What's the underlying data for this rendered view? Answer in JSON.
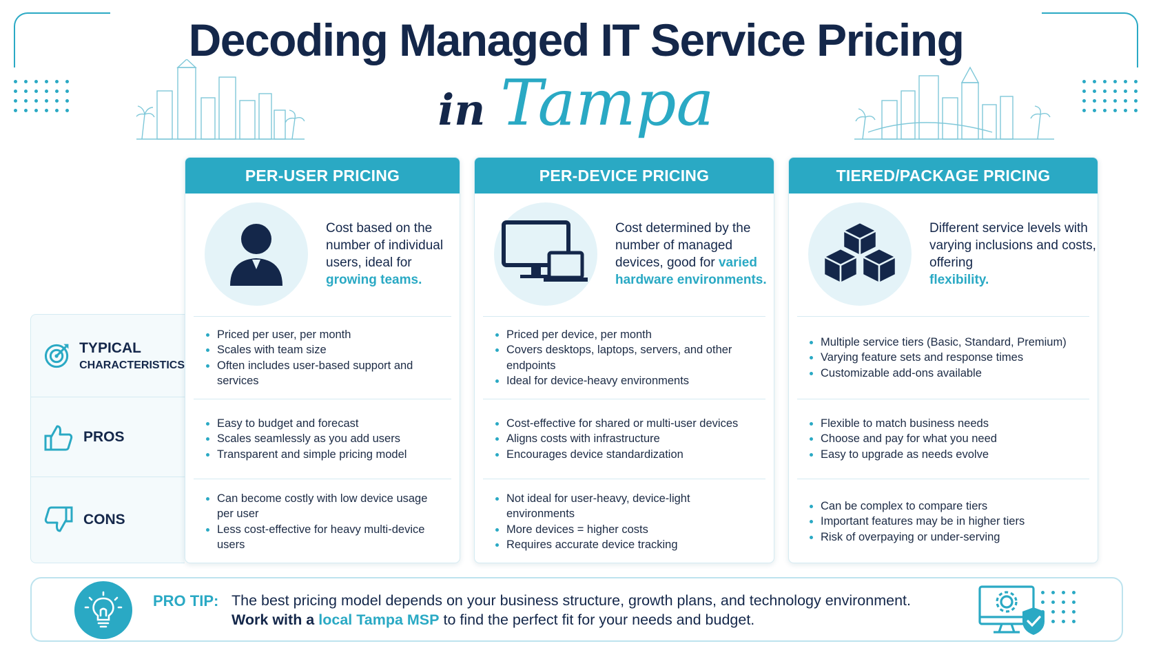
{
  "title": {
    "main": "Decoding Managed IT Service Pricing",
    "in": "in",
    "city": "Tampa"
  },
  "colors": {
    "accent": "#2aa9c4",
    "navy": "#14274a",
    "light": "#e4f3f8"
  },
  "row_labels": {
    "characteristics_1": "TYPICAL",
    "characteristics_2": "CHARACTERISTICS",
    "pros": "PROS",
    "cons": "CONS"
  },
  "columns": [
    {
      "header": "PER-USER PRICING",
      "icon": "user-icon",
      "desc_plain": "Cost based on the number of individual users, ideal for",
      "desc_hl": "growing teams.",
      "characteristics": [
        "Priced per user, per month",
        "Scales with team size",
        "Often includes user-based support and services"
      ],
      "pros": [
        "Easy to budget and forecast",
        "Scales seamlessly as you add users",
        "Transparent and simple pricing model"
      ],
      "cons": [
        "Can become costly with low device usage per user",
        "Less cost-effective for heavy multi-device users"
      ]
    },
    {
      "header": "PER-DEVICE PRICING",
      "icon": "devices-icon",
      "desc_plain": "Cost determined by the number of managed devices, good for",
      "desc_hl": "varied hardware environments.",
      "characteristics": [
        "Priced per device, per month",
        "Covers desktops, laptops, servers, and other endpoints",
        "Ideal for device-heavy environments"
      ],
      "pros": [
        "Cost-effective for shared or multi-user devices",
        "Aligns costs with infrastructure",
        "Encourages device standardization"
      ],
      "cons": [
        "Not ideal for user-heavy, device-light environments",
        "More devices = higher costs",
        "Requires accurate device tracking"
      ]
    },
    {
      "header": "TIERED/PACKAGE PRICING",
      "icon": "cubes-icon",
      "desc_plain": "Different service levels with varying inclusions and costs, offering",
      "desc_hl": "flexibility.",
      "characteristics": [
        "Multiple service tiers (Basic, Standard, Premium)",
        "Varying feature sets and response times",
        "Customizable add-ons available"
      ],
      "pros": [
        "Flexible to match business needs",
        "Choose and pay for what you need",
        "Easy to upgrade as needs evolve"
      ],
      "cons": [
        "Can be complex to compare tiers",
        "Important features may be in higher tiers",
        "Risk of overpaying or under-serving"
      ]
    }
  ],
  "protip": {
    "label": "PRO TIP:",
    "line1": "The best pricing model depends on your business structure, growth plans, and technology environment.",
    "line2_bold": "Work with a",
    "line2_hl": "local Tampa MSP",
    "line2_rest": "to find the perfect fit for your needs and budget."
  }
}
